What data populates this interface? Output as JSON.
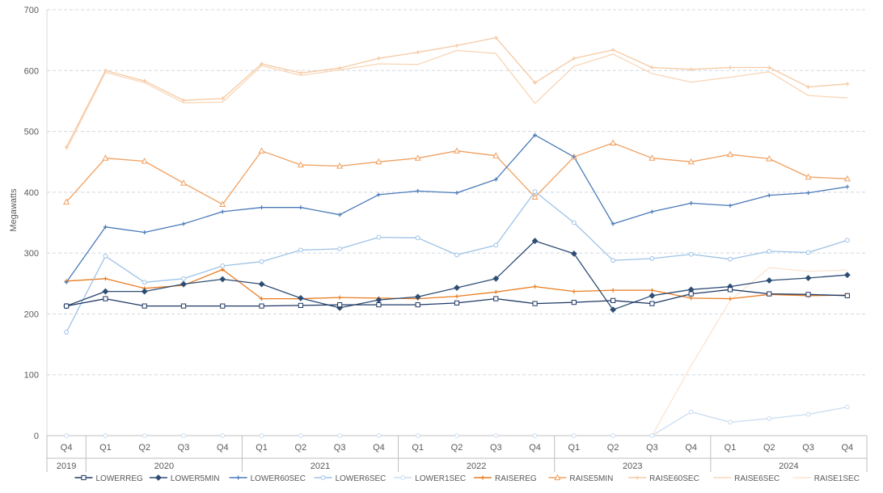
{
  "chart_data": {
    "type": "line",
    "ylabel": "Megawatts",
    "ylim": [
      0,
      700
    ],
    "yticks": [
      0,
      100,
      200,
      300,
      400,
      500,
      600,
      700
    ],
    "grid": "horizontal dashed",
    "legend_position": "bottom",
    "quarters": [
      "Q4",
      "Q1",
      "Q2",
      "Q3",
      "Q4",
      "Q1",
      "Q2",
      "Q3",
      "Q4",
      "Q1",
      "Q2",
      "Q3",
      "Q4",
      "Q1",
      "Q2",
      "Q3",
      "Q4",
      "Q1",
      "Q2",
      "Q3",
      "Q4"
    ],
    "years": [
      {
        "label": "2019",
        "span": 1
      },
      {
        "label": "2020",
        "span": 4
      },
      {
        "label": "2021",
        "span": 4
      },
      {
        "label": "2022",
        "span": 4
      },
      {
        "label": "2023",
        "span": 4
      },
      {
        "label": "2024",
        "span": 4
      }
    ],
    "series": [
      {
        "name": "LOWERREG",
        "color": "#1f3864",
        "marker": "square",
        "values": [
          213,
          225,
          213,
          213,
          213,
          213,
          214,
          215,
          215,
          215,
          218,
          225,
          217,
          219,
          222,
          217,
          233,
          240,
          233,
          232,
          230
        ]
      },
      {
        "name": "LOWER5MIN",
        "color": "#2e4d73",
        "marker": "diamond",
        "values": [
          213,
          237,
          237,
          249,
          257,
          249,
          226,
          210,
          223,
          228,
          243,
          258,
          320,
          299,
          207,
          230,
          240,
          245,
          255,
          259,
          264
        ]
      },
      {
        "name": "LOWER60SEC",
        "color": "#4a7ab8",
        "marker": "plus",
        "values": [
          252,
          343,
          334,
          348,
          368,
          375,
          375,
          363,
          396,
          402,
          399,
          421,
          494,
          458,
          348,
          368,
          382,
          378,
          395,
          399,
          409
        ]
      },
      {
        "name": "LOWER6SEC",
        "color": "#9dc3e6",
        "marker": "circle",
        "values": [
          170,
          295,
          252,
          258,
          279,
          286,
          305,
          307,
          326,
          325,
          297,
          313,
          401,
          350,
          288,
          291,
          298,
          290,
          303,
          301,
          321
        ]
      },
      {
        "name": "LOWER1SEC",
        "color": "#c9dcf0",
        "marker": "circle",
        "values": [
          null,
          null,
          null,
          null,
          null,
          null,
          null,
          null,
          null,
          null,
          null,
          null,
          null,
          null,
          null,
          0,
          39,
          22,
          28,
          35,
          47
        ]
      },
      {
        "name": "RAISEREG",
        "color": "#e97c20",
        "marker": "plus",
        "values": [
          254,
          258,
          242,
          247,
          273,
          225,
          225,
          227,
          226,
          225,
          229,
          236,
          245,
          237,
          239,
          239,
          226,
          225,
          232,
          230,
          231
        ]
      },
      {
        "name": "RAISE5MIN",
        "color": "#f0a060",
        "marker": "triangle",
        "values": [
          384,
          456,
          451,
          415,
          380,
          468,
          445,
          443,
          450,
          456,
          468,
          460,
          392,
          458,
          481,
          456,
          450,
          462,
          455,
          425,
          422
        ]
      },
      {
        "name": "RAISE60SEC",
        "color": "#f6c9a2",
        "marker": "plus",
        "values": [
          474,
          600,
          583,
          551,
          554,
          611,
          596,
          604,
          620,
          630,
          641,
          654,
          580,
          620,
          634,
          605,
          602,
          605,
          605,
          573,
          578
        ]
      },
      {
        "name": "RAISE6SEC",
        "color": "#f9d5b6",
        "marker": "none",
        "values": [
          470,
          597,
          580,
          547,
          548,
          608,
          592,
          601,
          611,
          610,
          633,
          628,
          546,
          607,
          627,
          595,
          581,
          589,
          598,
          559,
          555
        ]
      },
      {
        "name": "RAISE1SEC",
        "color": "#fce4d2",
        "marker": "none",
        "values": [
          null,
          null,
          null,
          null,
          null,
          null,
          null,
          null,
          null,
          null,
          null,
          null,
          null,
          null,
          null,
          0,
          115,
          222,
          276,
          270,
          272
        ]
      }
    ]
  }
}
